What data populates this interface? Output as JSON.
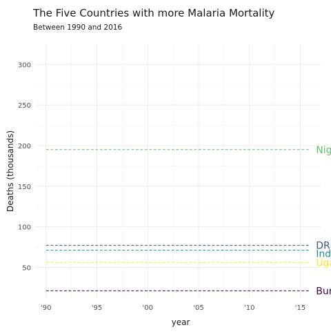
{
  "chart_data": {
    "type": "line",
    "title": "The Five Countries with more Malaria Mortality",
    "subtitle": "Between 1990 and 2016",
    "xlabel": "year",
    "ylabel": "Deaths (thousands)",
    "xlim": [
      1989,
      2017
    ],
    "ylim": [
      12,
      325
    ],
    "x_ticks": [
      1990,
      1995,
      2000,
      2005,
      2010,
      2015
    ],
    "x_tick_labels": [
      "'90",
      "'95",
      "'00",
      "'05",
      "'10",
      "'15"
    ],
    "y_ticks": [
      50,
      100,
      150,
      200,
      250,
      300
    ],
    "y_tick_labels": [
      "50",
      "100",
      "150",
      "200",
      "250",
      "300"
    ],
    "grid": true,
    "line_style": "dashed",
    "legend": "direct labels at right end of lines",
    "series": [
      {
        "name": "Nigeria",
        "color": "#5ec962",
        "x": [
          1990,
          2016
        ],
        "values": [
          195,
          195
        ]
      },
      {
        "name": "DR Congo",
        "color": "#3b528b",
        "x": [
          1990,
          2016
        ],
        "values": [
          77,
          77
        ]
      },
      {
        "name": "India",
        "color": "#21918c",
        "x": [
          1990,
          2016
        ],
        "values": [
          71,
          71
        ]
      },
      {
        "name": "Uganda",
        "color": "#fde725",
        "x": [
          1990,
          2016
        ],
        "values": [
          56,
          56
        ]
      },
      {
        "name": "Burkina Faso",
        "color": "#440154",
        "x": [
          1990,
          2016
        ],
        "values": [
          21,
          21
        ]
      }
    ]
  }
}
